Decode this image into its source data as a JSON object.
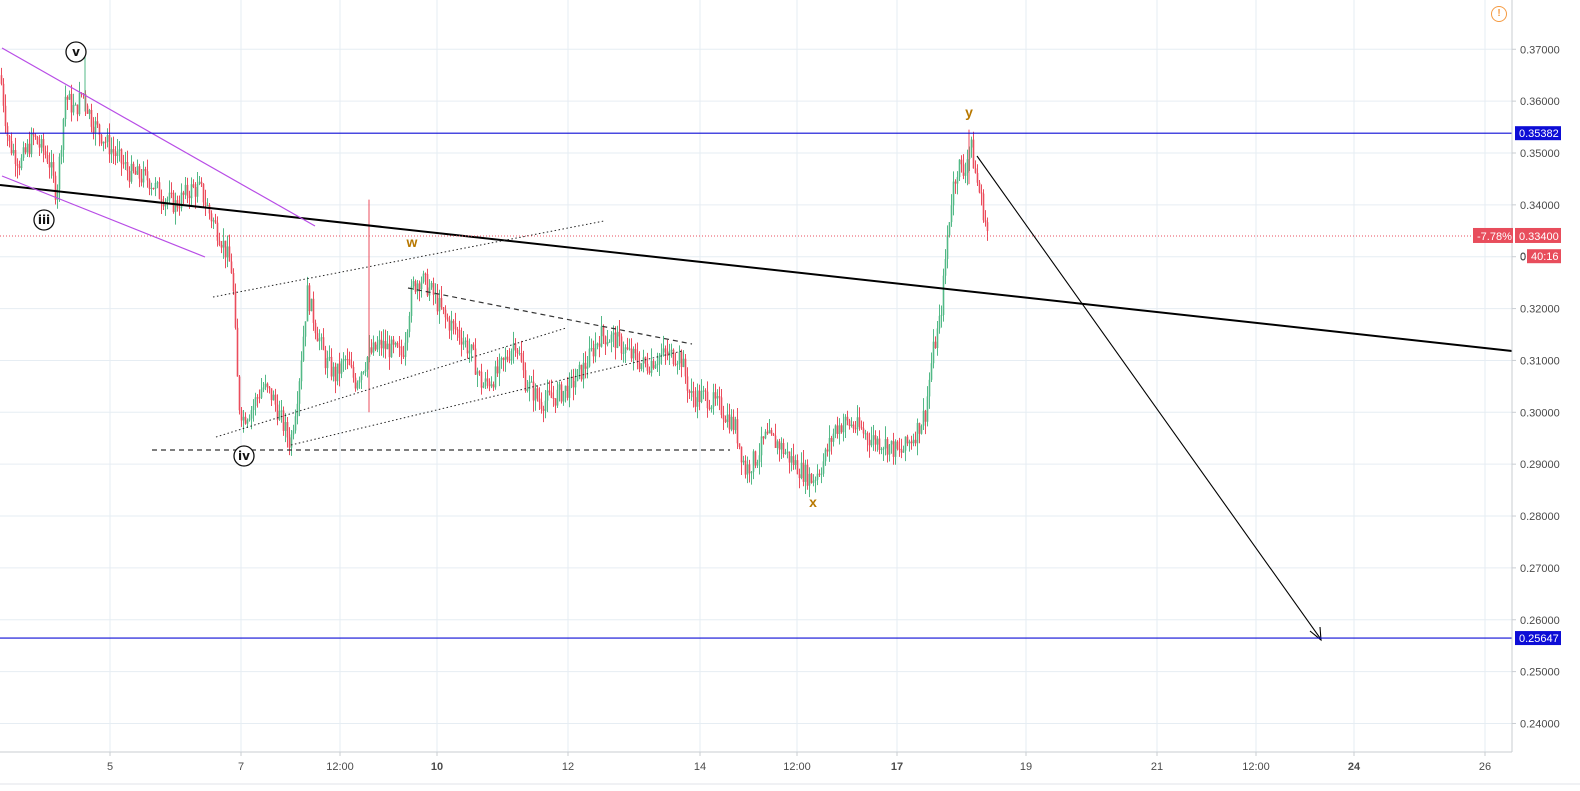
{
  "chart_data": {
    "type": "candlestick",
    "title": "",
    "ylim": [
      0.2345,
      0.3795
    ],
    "y_ticks": [
      "0.24000",
      "0.25000",
      "0.26000",
      "0.27000",
      "0.28000",
      "0.29000",
      "0.30000",
      "0.31000",
      "0.32000",
      "0.33000",
      "0.34000",
      "0.35000",
      "0.36000",
      "0.37000"
    ],
    "y_tick_values": [
      0.24,
      0.25,
      0.26,
      0.27,
      0.28,
      0.29,
      0.3,
      0.31,
      0.32,
      0.33,
      0.34,
      0.35,
      0.36,
      0.37
    ],
    "x_labels": [
      {
        "label": "5",
        "bold": false
      },
      {
        "label": "7",
        "bold": false
      },
      {
        "label": "12:00",
        "bold": false
      },
      {
        "label": "10",
        "bold": true
      },
      {
        "label": "12",
        "bold": false
      },
      {
        "label": "14",
        "bold": false
      },
      {
        "label": "12:00",
        "bold": false
      },
      {
        "label": "17",
        "bold": true
      },
      {
        "label": "19",
        "bold": false
      },
      {
        "label": "21",
        "bold": false
      },
      {
        "label": "12:00",
        "bold": false
      },
      {
        "label": "24",
        "bold": true
      },
      {
        "label": "26",
        "bold": false
      }
    ],
    "price_path": [
      [
        0,
        0.365
      ],
      [
        8,
        0.352
      ],
      [
        20,
        0.348
      ],
      [
        33,
        0.353
      ],
      [
        48,
        0.349
      ],
      [
        56,
        0.342
      ],
      [
        65,
        0.361
      ],
      [
        75,
        0.358
      ],
      [
        82,
        0.362
      ],
      [
        92,
        0.356
      ],
      [
        110,
        0.351
      ],
      [
        130,
        0.346
      ],
      [
        148,
        0.345
      ],
      [
        160,
        0.342
      ],
      [
        175,
        0.34
      ],
      [
        190,
        0.343
      ],
      [
        200,
        0.343
      ],
      [
        210,
        0.338
      ],
      [
        222,
        0.333
      ],
      [
        232,
        0.327
      ],
      [
        238,
        0.302
      ],
      [
        243,
        0.299
      ],
      [
        252,
        0.301
      ],
      [
        262,
        0.305
      ],
      [
        272,
        0.303
      ],
      [
        282,
        0.298
      ],
      [
        290,
        0.294
      ],
      [
        298,
        0.305
      ],
      [
        307,
        0.323
      ],
      [
        316,
        0.316
      ],
      [
        325,
        0.31
      ],
      [
        335,
        0.307
      ],
      [
        345,
        0.31
      ],
      [
        355,
        0.306
      ],
      [
        368,
        0.311
      ],
      [
        380,
        0.313
      ],
      [
        392,
        0.312
      ],
      [
        402,
        0.311
      ],
      [
        412,
        0.324
      ],
      [
        420,
        0.326
      ],
      [
        432,
        0.323
      ],
      [
        445,
        0.318
      ],
      [
        460,
        0.315
      ],
      [
        472,
        0.311
      ],
      [
        482,
        0.305
      ],
      [
        495,
        0.307
      ],
      [
        505,
        0.31
      ],
      [
        515,
        0.314
      ],
      [
        525,
        0.306
      ],
      [
        540,
        0.302
      ],
      [
        555,
        0.303
      ],
      [
        570,
        0.305
      ],
      [
        585,
        0.309
      ],
      [
        600,
        0.315
      ],
      [
        615,
        0.314
      ],
      [
        630,
        0.311
      ],
      [
        645,
        0.309
      ],
      [
        660,
        0.311
      ],
      [
        680,
        0.311
      ],
      [
        690,
        0.303
      ],
      [
        705,
        0.303
      ],
      [
        720,
        0.301
      ],
      [
        735,
        0.297
      ],
      [
        745,
        0.289
      ],
      [
        755,
        0.291
      ],
      [
        765,
        0.295
      ],
      [
        778,
        0.294
      ],
      [
        790,
        0.291
      ],
      [
        800,
        0.289
      ],
      [
        812,
        0.287
      ],
      [
        822,
        0.29
      ],
      [
        835,
        0.297
      ],
      [
        845,
        0.298
      ],
      [
        858,
        0.297
      ],
      [
        870,
        0.295
      ],
      [
        885,
        0.294
      ],
      [
        900,
        0.292
      ],
      [
        915,
        0.296
      ],
      [
        925,
        0.3
      ],
      [
        932,
        0.311
      ],
      [
        940,
        0.318
      ],
      [
        947,
        0.334
      ],
      [
        952,
        0.343
      ],
      [
        958,
        0.348
      ],
      [
        963,
        0.346
      ],
      [
        970,
        0.352
      ],
      [
        975,
        0.346
      ],
      [
        982,
        0.34
      ],
      [
        988,
        0.3335
      ]
    ],
    "last_price": 0.334,
    "last_change": "-7.78%",
    "last_price_label": "0.33400",
    "countdown": "40:16",
    "countdown_price": 0.3301,
    "countdown_axis_label": "0",
    "horizontal_levels": [
      {
        "price": 0.35382,
        "label": "0.35382",
        "color": "#0d0dd6"
      },
      {
        "price": 0.25647,
        "label": "0.25647",
        "color": "#0d0dd6"
      }
    ],
    "colors": {
      "up": "#53b987",
      "down": "#eb4d5c",
      "grid": "#e6edf3",
      "trendline": "#000000",
      "channel": "#b84de6",
      "wave_label": "#b87800",
      "last_price": "#e84d5c"
    },
    "wave_labels": [
      {
        "text": "w",
        "style": "letter"
      },
      {
        "text": "x",
        "style": "letter"
      },
      {
        "text": "y",
        "style": "letter"
      },
      {
        "text": "v",
        "style": "circled"
      },
      {
        "text": "iii",
        "style": "circled"
      },
      {
        "text": "iv",
        "style": "circled"
      }
    ],
    "alert_icon": "exclamation-alert-icon"
  }
}
